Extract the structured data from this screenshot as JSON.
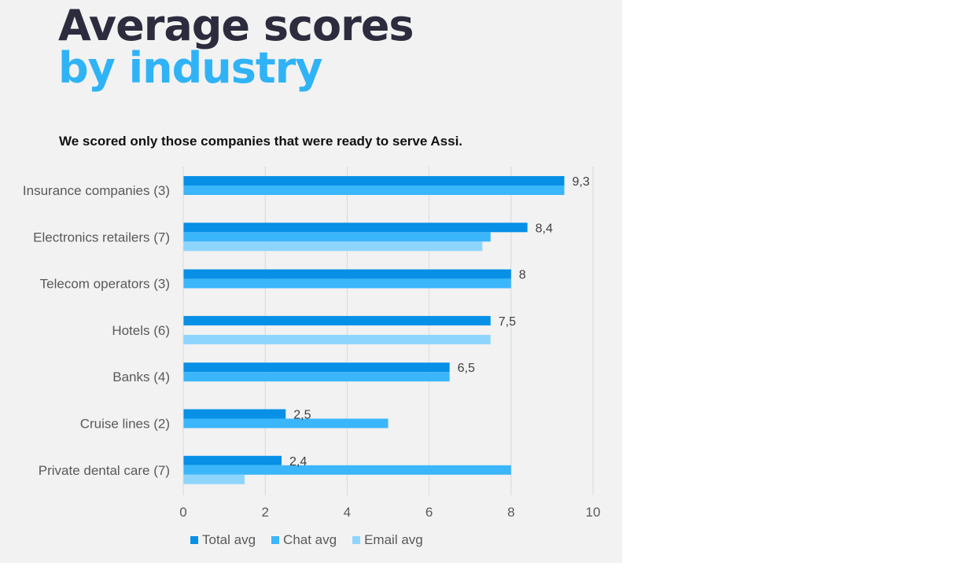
{
  "title_line1": "Average scores",
  "title_line2": "by industry",
  "subtitle": "We scored only those companies that were ready to serve Assi.",
  "colors": {
    "total": "#0790e6",
    "chat": "#3bb6fb",
    "email": "#8ed5fd"
  },
  "chart_data": {
    "type": "bar",
    "orientation": "horizontal",
    "categories": [
      "Insurance companies (3)",
      "Electronics retailers (7)",
      "Telecom operators (3)",
      "Hotels (6)",
      "Banks (4)",
      "Cruise lines (2)",
      "Private dental care  (7)"
    ],
    "series": [
      {
        "name": "Total avg",
        "values": [
          9.3,
          8.4,
          8,
          7.5,
          6.5,
          2.5,
          2.4
        ]
      },
      {
        "name": "Chat avg",
        "values": [
          9.3,
          7.5,
          8,
          null,
          6.5,
          5,
          8
        ]
      },
      {
        "name": "Email avg",
        "values": [
          null,
          7.3,
          null,
          7.5,
          null,
          null,
          1.5
        ]
      }
    ],
    "data_labels": [
      "9,3",
      "8,4",
      "8",
      "7,5",
      "6,5",
      "2,5",
      "2,4"
    ],
    "xticks": [
      "0",
      "2",
      "4",
      "6",
      "8",
      "10"
    ],
    "xlim": [
      0,
      10
    ],
    "grid": true,
    "legend_position": "bottom"
  }
}
